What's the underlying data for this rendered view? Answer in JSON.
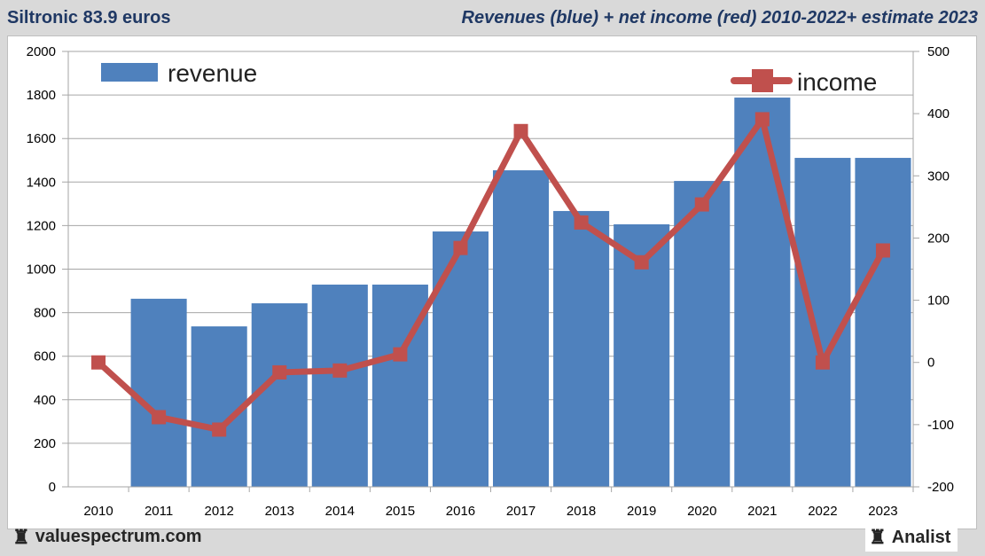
{
  "header": {
    "title_left": "Siltronic 83.9 euros",
    "title_right": "Revenues (blue) + net income (red) 2010-2022+ estimate 2023"
  },
  "footer": {
    "left_brand": "valuespectrum.com",
    "right_brand": "Analist",
    "icon": "chess-rook-icon"
  },
  "colors": {
    "revenue": "#4f81bd",
    "income": "#c0504d",
    "title": "#1f3864"
  },
  "chart_data": {
    "type": "bar",
    "title": "Revenues (blue) + net income (red) 2010-2022+ estimate 2023",
    "categories": [
      "2010",
      "2011",
      "2012",
      "2013",
      "2014",
      "2015",
      "2016",
      "2017",
      "2018",
      "2019",
      "2020",
      "2021",
      "2022",
      "2023"
    ],
    "series": [
      {
        "name": "revenue",
        "type": "bar",
        "axis": "left",
        "values": [
          0,
          864,
          737,
          843,
          929,
          929,
          1173,
          1454,
          1267,
          1206,
          1405,
          1788,
          1511,
          1511
        ]
      },
      {
        "name": "income",
        "type": "line",
        "axis": "right",
        "values": [
          0,
          -88,
          -108,
          -16,
          -13,
          13,
          184,
          372,
          225,
          161,
          254,
          391,
          0,
          180
        ]
      }
    ],
    "y_left": {
      "range": [
        0,
        2000
      ],
      "ticks": [
        "0",
        "200",
        "400",
        "600",
        "800",
        "1000",
        "1200",
        "1400",
        "1600",
        "1800",
        "2000"
      ]
    },
    "y_right": {
      "range": [
        -200,
        500
      ],
      "ticks": [
        "-200",
        "-100",
        "0",
        "100",
        "200",
        "300",
        "400",
        "500"
      ]
    },
    "legend": [
      {
        "label": "revenue",
        "position": "top-left"
      },
      {
        "label": "income",
        "position": "top-right"
      }
    ],
    "grid": true
  }
}
